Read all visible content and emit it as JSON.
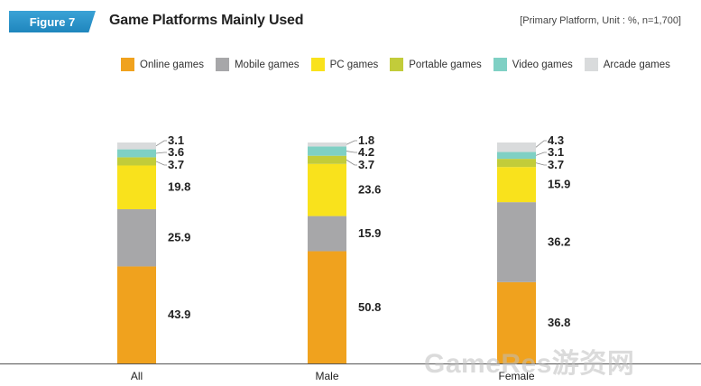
{
  "figure_badge": "Figure 7",
  "title": "Game Platforms Mainly Used",
  "note": "[Primary Platform, Unit : %, n=1,700]",
  "watermark": "GameRes游资网",
  "chart_data": {
    "type": "bar",
    "stacked": true,
    "categories": [
      "All",
      "Male",
      "Female"
    ],
    "series": [
      {
        "name": "Online games",
        "color": "#f0a21e",
        "values": [
          43.9,
          50.8,
          36.8
        ]
      },
      {
        "name": "Mobile games",
        "color": "#a7a7a9",
        "values": [
          25.9,
          15.9,
          36.2
        ]
      },
      {
        "name": "PC games",
        "color": "#f9e21c",
        "values": [
          19.8,
          23.6,
          15.9
        ]
      },
      {
        "name": "Portable games",
        "color": "#c2cc3a",
        "values": [
          3.7,
          3.7,
          3.7
        ]
      },
      {
        "name": "Video games",
        "color": "#7fd0c4",
        "values": [
          3.6,
          4.2,
          3.1
        ]
      },
      {
        "name": "Arcade games",
        "color": "#d9dbdc",
        "values": [
          3.1,
          1.8,
          4.3
        ]
      }
    ],
    "ylim": [
      0,
      100
    ],
    "grid": false,
    "legend_position": "top"
  }
}
